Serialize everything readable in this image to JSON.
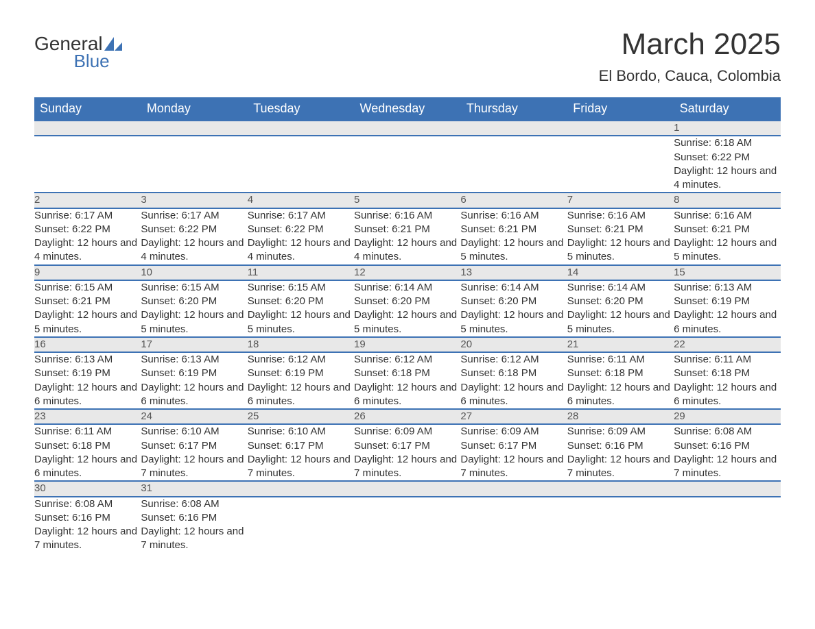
{
  "logo": {
    "word1": "General",
    "word2": "Blue",
    "accent_color": "#3d72b4"
  },
  "title": {
    "month": "March 2025",
    "location": "El Bordo, Cauca, Colombia"
  },
  "colors": {
    "header_bg": "#3d72b4",
    "header_text": "#ffffff",
    "daynum_bg": "#e8e8e8",
    "row_border": "#3d72b4",
    "body_text": "#333333"
  },
  "typography": {
    "title_fontsize": 44,
    "location_fontsize": 22,
    "header_fontsize": 18,
    "daynum_fontsize": 17,
    "cell_fontsize": 15
  },
  "calendar": {
    "type": "table",
    "columns": [
      "Sunday",
      "Monday",
      "Tuesday",
      "Wednesday",
      "Thursday",
      "Friday",
      "Saturday"
    ],
    "weeks": [
      {
        "days": [
          null,
          null,
          null,
          null,
          null,
          null,
          {
            "n": "1",
            "sunrise": "Sunrise: 6:18 AM",
            "sunset": "Sunset: 6:22 PM",
            "daylight": "Daylight: 12 hours and 4 minutes."
          }
        ]
      },
      {
        "days": [
          {
            "n": "2",
            "sunrise": "Sunrise: 6:17 AM",
            "sunset": "Sunset: 6:22 PM",
            "daylight": "Daylight: 12 hours and 4 minutes."
          },
          {
            "n": "3",
            "sunrise": "Sunrise: 6:17 AM",
            "sunset": "Sunset: 6:22 PM",
            "daylight": "Daylight: 12 hours and 4 minutes."
          },
          {
            "n": "4",
            "sunrise": "Sunrise: 6:17 AM",
            "sunset": "Sunset: 6:22 PM",
            "daylight": "Daylight: 12 hours and 4 minutes."
          },
          {
            "n": "5",
            "sunrise": "Sunrise: 6:16 AM",
            "sunset": "Sunset: 6:21 PM",
            "daylight": "Daylight: 12 hours and 4 minutes."
          },
          {
            "n": "6",
            "sunrise": "Sunrise: 6:16 AM",
            "sunset": "Sunset: 6:21 PM",
            "daylight": "Daylight: 12 hours and 5 minutes."
          },
          {
            "n": "7",
            "sunrise": "Sunrise: 6:16 AM",
            "sunset": "Sunset: 6:21 PM",
            "daylight": "Daylight: 12 hours and 5 minutes."
          },
          {
            "n": "8",
            "sunrise": "Sunrise: 6:16 AM",
            "sunset": "Sunset: 6:21 PM",
            "daylight": "Daylight: 12 hours and 5 minutes."
          }
        ]
      },
      {
        "days": [
          {
            "n": "9",
            "sunrise": "Sunrise: 6:15 AM",
            "sunset": "Sunset: 6:21 PM",
            "daylight": "Daylight: 12 hours and 5 minutes."
          },
          {
            "n": "10",
            "sunrise": "Sunrise: 6:15 AM",
            "sunset": "Sunset: 6:20 PM",
            "daylight": "Daylight: 12 hours and 5 minutes."
          },
          {
            "n": "11",
            "sunrise": "Sunrise: 6:15 AM",
            "sunset": "Sunset: 6:20 PM",
            "daylight": "Daylight: 12 hours and 5 minutes."
          },
          {
            "n": "12",
            "sunrise": "Sunrise: 6:14 AM",
            "sunset": "Sunset: 6:20 PM",
            "daylight": "Daylight: 12 hours and 5 minutes."
          },
          {
            "n": "13",
            "sunrise": "Sunrise: 6:14 AM",
            "sunset": "Sunset: 6:20 PM",
            "daylight": "Daylight: 12 hours and 5 minutes."
          },
          {
            "n": "14",
            "sunrise": "Sunrise: 6:14 AM",
            "sunset": "Sunset: 6:20 PM",
            "daylight": "Daylight: 12 hours and 5 minutes."
          },
          {
            "n": "15",
            "sunrise": "Sunrise: 6:13 AM",
            "sunset": "Sunset: 6:19 PM",
            "daylight": "Daylight: 12 hours and 6 minutes."
          }
        ]
      },
      {
        "days": [
          {
            "n": "16",
            "sunrise": "Sunrise: 6:13 AM",
            "sunset": "Sunset: 6:19 PM",
            "daylight": "Daylight: 12 hours and 6 minutes."
          },
          {
            "n": "17",
            "sunrise": "Sunrise: 6:13 AM",
            "sunset": "Sunset: 6:19 PM",
            "daylight": "Daylight: 12 hours and 6 minutes."
          },
          {
            "n": "18",
            "sunrise": "Sunrise: 6:12 AM",
            "sunset": "Sunset: 6:19 PM",
            "daylight": "Daylight: 12 hours and 6 minutes."
          },
          {
            "n": "19",
            "sunrise": "Sunrise: 6:12 AM",
            "sunset": "Sunset: 6:18 PM",
            "daylight": "Daylight: 12 hours and 6 minutes."
          },
          {
            "n": "20",
            "sunrise": "Sunrise: 6:12 AM",
            "sunset": "Sunset: 6:18 PM",
            "daylight": "Daylight: 12 hours and 6 minutes."
          },
          {
            "n": "21",
            "sunrise": "Sunrise: 6:11 AM",
            "sunset": "Sunset: 6:18 PM",
            "daylight": "Daylight: 12 hours and 6 minutes."
          },
          {
            "n": "22",
            "sunrise": "Sunrise: 6:11 AM",
            "sunset": "Sunset: 6:18 PM",
            "daylight": "Daylight: 12 hours and 6 minutes."
          }
        ]
      },
      {
        "days": [
          {
            "n": "23",
            "sunrise": "Sunrise: 6:11 AM",
            "sunset": "Sunset: 6:18 PM",
            "daylight": "Daylight: 12 hours and 6 minutes."
          },
          {
            "n": "24",
            "sunrise": "Sunrise: 6:10 AM",
            "sunset": "Sunset: 6:17 PM",
            "daylight": "Daylight: 12 hours and 7 minutes."
          },
          {
            "n": "25",
            "sunrise": "Sunrise: 6:10 AM",
            "sunset": "Sunset: 6:17 PM",
            "daylight": "Daylight: 12 hours and 7 minutes."
          },
          {
            "n": "26",
            "sunrise": "Sunrise: 6:09 AM",
            "sunset": "Sunset: 6:17 PM",
            "daylight": "Daylight: 12 hours and 7 minutes."
          },
          {
            "n": "27",
            "sunrise": "Sunrise: 6:09 AM",
            "sunset": "Sunset: 6:17 PM",
            "daylight": "Daylight: 12 hours and 7 minutes."
          },
          {
            "n": "28",
            "sunrise": "Sunrise: 6:09 AM",
            "sunset": "Sunset: 6:16 PM",
            "daylight": "Daylight: 12 hours and 7 minutes."
          },
          {
            "n": "29",
            "sunrise": "Sunrise: 6:08 AM",
            "sunset": "Sunset: 6:16 PM",
            "daylight": "Daylight: 12 hours and 7 minutes."
          }
        ]
      },
      {
        "days": [
          {
            "n": "30",
            "sunrise": "Sunrise: 6:08 AM",
            "sunset": "Sunset: 6:16 PM",
            "daylight": "Daylight: 12 hours and 7 minutes."
          },
          {
            "n": "31",
            "sunrise": "Sunrise: 6:08 AM",
            "sunset": "Sunset: 6:16 PM",
            "daylight": "Daylight: 12 hours and 7 minutes."
          },
          null,
          null,
          null,
          null,
          null
        ]
      }
    ]
  }
}
